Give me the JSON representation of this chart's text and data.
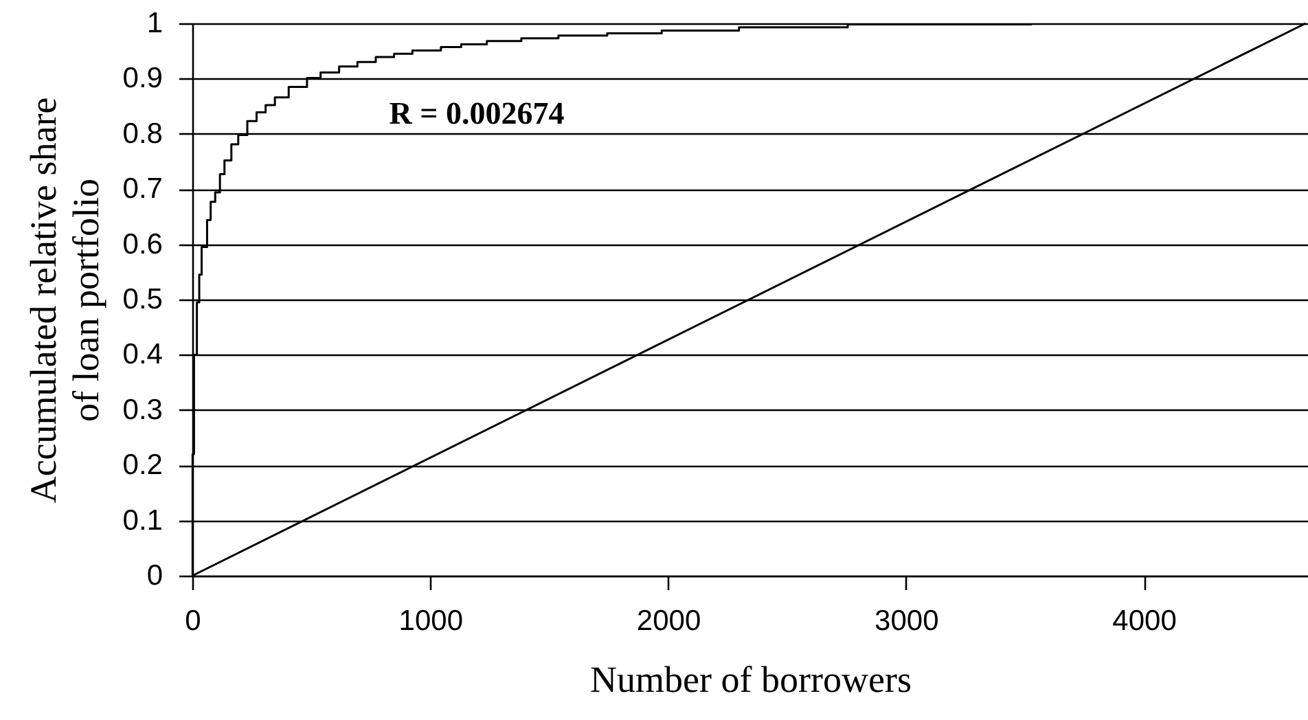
{
  "chart_data": {
    "type": "line",
    "xlabel": "Number of borrowers",
    "ylabel": "Accumulated relative share of loan portfolio",
    "annotations": [
      "R = 0.002674"
    ],
    "xlim": [
      0,
      4690
    ],
    "xticks": [
      0,
      1000,
      2000,
      3000,
      4000
    ],
    "ylim": [
      0,
      1
    ],
    "yticks": [
      0,
      0.1,
      0.2,
      0.3,
      0.4,
      0.5,
      0.6,
      0.7,
      0.8,
      0.9,
      1
    ],
    "grid": "y",
    "series": [
      {
        "type": "step",
        "color": "#000000",
        "x": [
          0,
          1,
          7,
          19,
          29,
          39,
          62,
          77,
          96,
          116,
          135,
          164,
          193,
          231,
          270,
          308,
          347,
          405,
          482,
          539,
          617,
          694,
          771,
          848,
          925,
          1045,
          1130,
          1238,
          1383,
          1539,
          1744,
          1973,
          2298,
          2755,
          3526
        ],
        "values": [
          0,
          0.22,
          0.4,
          0.495,
          0.545,
          0.595,
          0.644,
          0.677,
          0.694,
          0.727,
          0.752,
          0.781,
          0.798,
          0.823,
          0.839,
          0.852,
          0.866,
          0.885,
          0.901,
          0.911,
          0.922,
          0.93,
          0.939,
          0.945,
          0.951,
          0.957,
          0.962,
          0.968,
          0.973,
          0.978,
          0.982,
          0.987,
          0.993,
          0.998,
          1
        ]
      },
      {
        "color": "#000000",
        "x": [
          0,
          4680
        ],
        "values": [
          0,
          1
        ]
      }
    ]
  }
}
